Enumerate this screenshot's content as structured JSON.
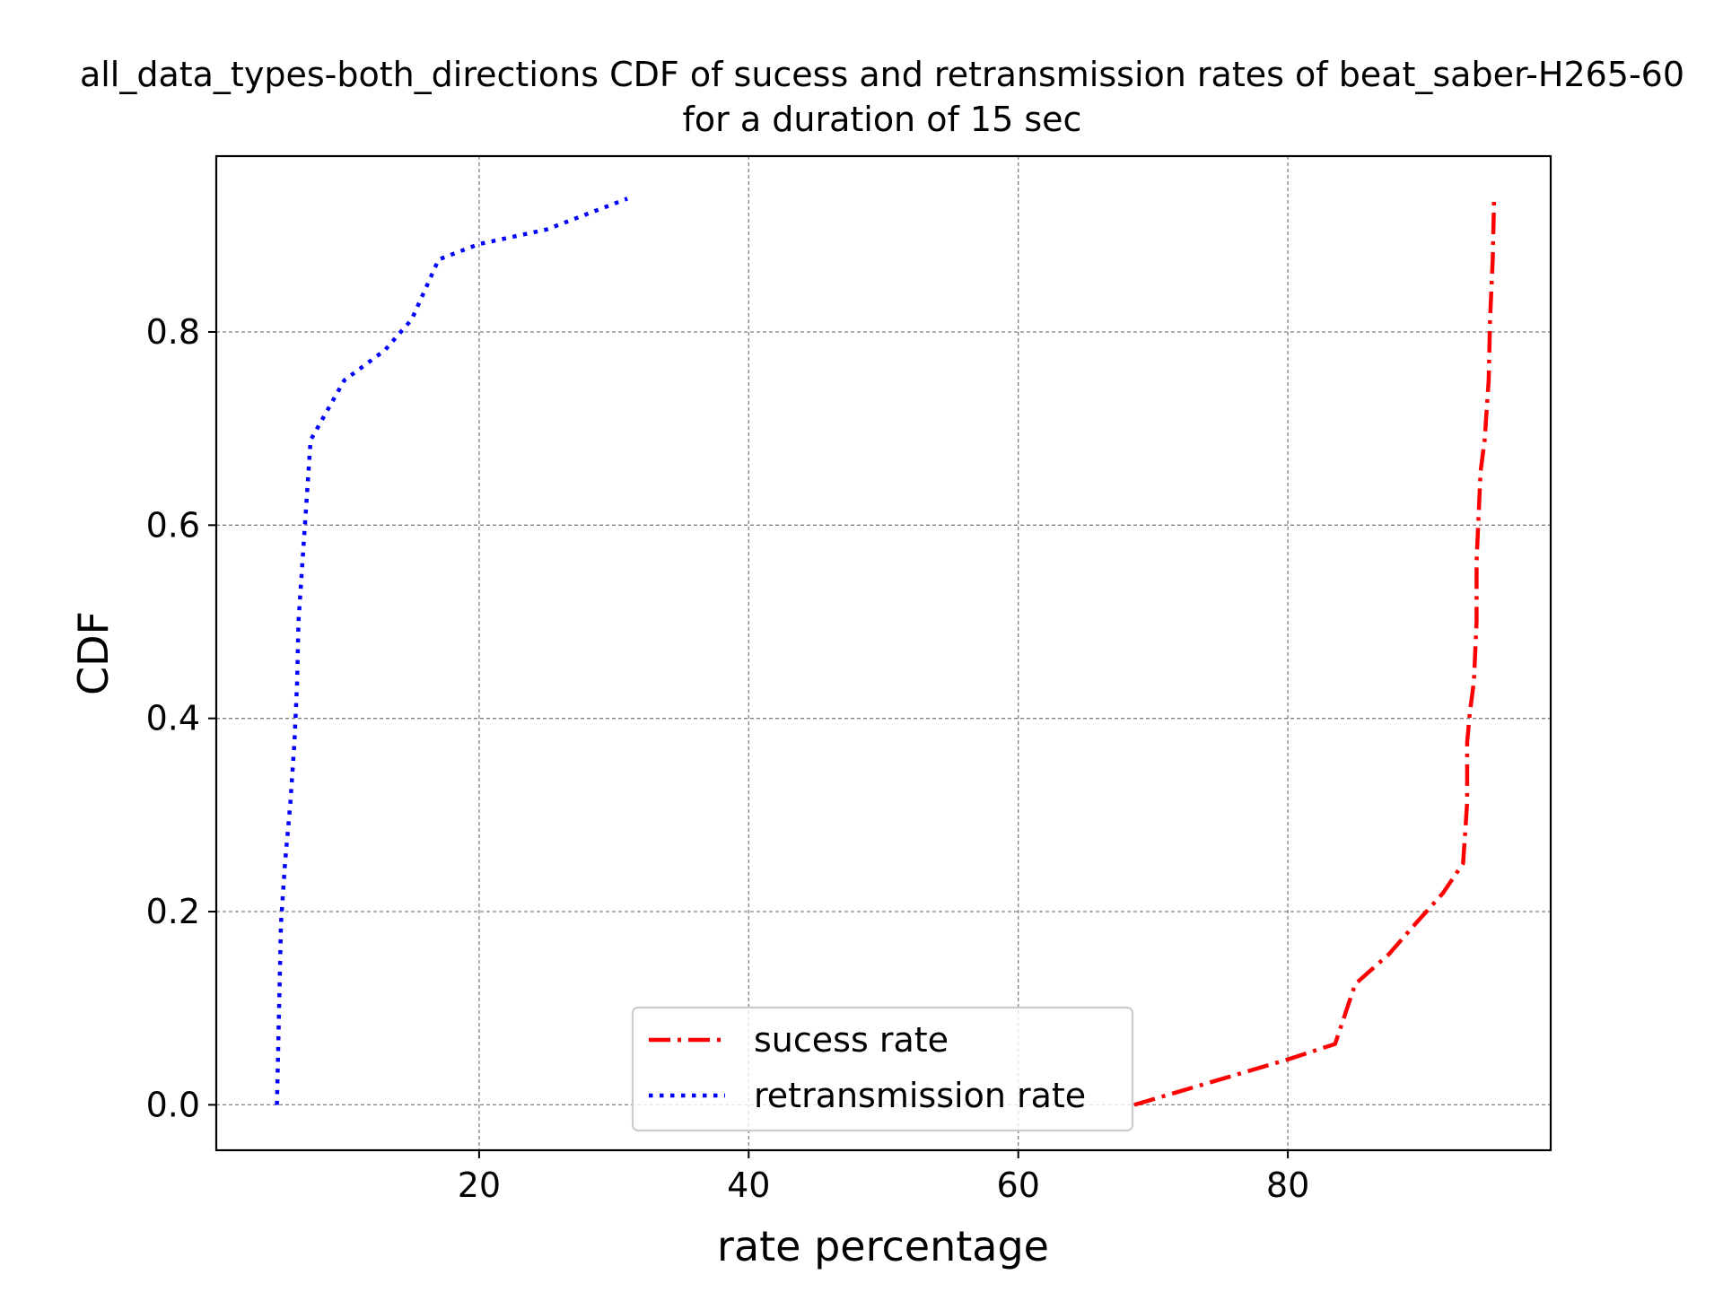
{
  "chart_data": {
    "type": "line",
    "title_line1": "all_data_types-both_directions CDF of sucess and retransmission rates of beat_saber-H265-60",
    "title_line2": "for a duration of 15 sec",
    "xlabel": "rate percentage",
    "ylabel": "CDF",
    "xlim": [
      0.5,
      99.5
    ],
    "ylim": [
      -0.047,
      0.982
    ],
    "xticks": [
      20,
      40,
      60,
      80
    ],
    "xtick_labels": [
      "20",
      "40",
      "60",
      "80"
    ],
    "yticks": [
      0.0,
      0.2,
      0.4,
      0.6,
      0.8
    ],
    "ytick_labels": [
      "0.0",
      "0.2",
      "0.4",
      "0.6",
      "0.8"
    ],
    "grid": true,
    "legend_position": "lower center",
    "series": [
      {
        "name": "sucess rate",
        "color": "#ff0000",
        "style": "dashdot",
        "x": [
          68.6,
          80.0,
          83.5,
          85.0,
          87.5,
          89.5,
          91.5,
          93.0,
          93.3,
          93.3,
          93.5,
          93.8,
          94.0,
          94.0,
          94.2,
          94.3,
          94.6,
          94.9,
          95.0,
          95.2,
          95.3
        ],
        "y": [
          0.0,
          0.047,
          0.063,
          0.125,
          0.156,
          0.188,
          0.219,
          0.25,
          0.313,
          0.375,
          0.406,
          0.438,
          0.5,
          0.563,
          0.625,
          0.656,
          0.688,
          0.75,
          0.813,
          0.875,
          0.938
        ]
      },
      {
        "name": "retransmission rate",
        "color": "#0000ff",
        "style": "dotted",
        "x": [
          5.0,
          5.2,
          5.3,
          5.6,
          6.0,
          6.3,
          6.5,
          6.6,
          6.9,
          7.2,
          7.5,
          10.0,
          13.0,
          15.0,
          16.0,
          17.0,
          20.0,
          25.0,
          31.0
        ],
        "y": [
          0.0,
          0.125,
          0.188,
          0.25,
          0.313,
          0.375,
          0.438,
          0.5,
          0.563,
          0.625,
          0.688,
          0.75,
          0.781,
          0.813,
          0.844,
          0.875,
          0.891,
          0.906,
          0.938
        ]
      }
    ]
  }
}
